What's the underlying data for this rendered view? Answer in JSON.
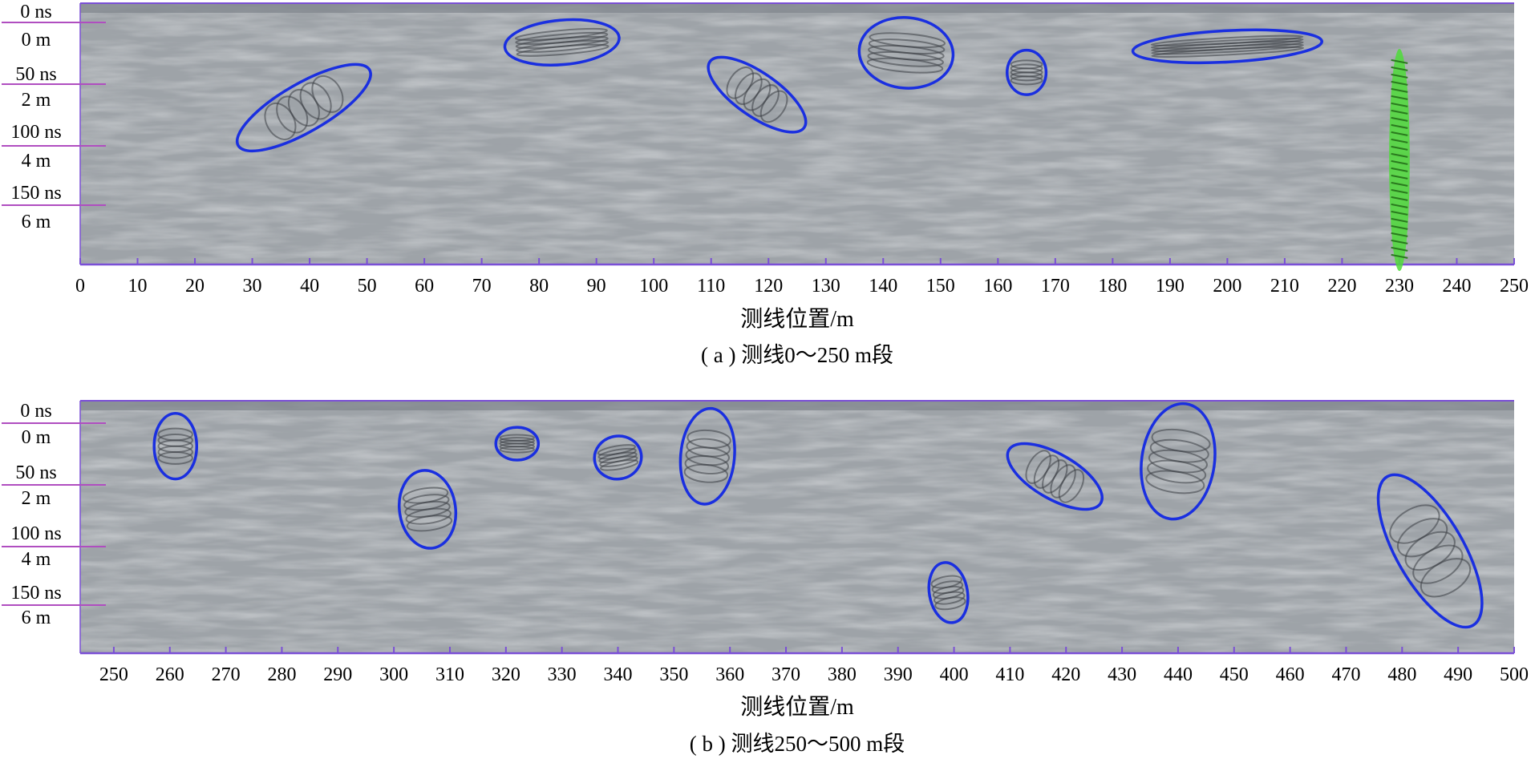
{
  "colors": {
    "radar_bg": "#9ea3a8",
    "axis": "#7a4fd6",
    "anomaly": "#1a2fe0",
    "highlight": "#4fdc3a",
    "left_scale": "#b04ec0"
  },
  "panels": [
    {
      "id": "a",
      "caption": "( a ) 测线0～250 m段",
      "x_axis_label": "测线位置/m",
      "x_ticks": [
        "0",
        "10",
        "20",
        "30",
        "40",
        "50",
        "60",
        "70",
        "80",
        "90",
        "100",
        "110",
        "120",
        "130",
        "140",
        "150",
        "160",
        "170",
        "180",
        "190",
        "200",
        "210",
        "220",
        "230",
        "240",
        "250"
      ],
      "x_range": [
        0,
        250
      ],
      "time_labels": [
        "0 ns",
        "50 ns",
        "100 ns",
        "150 ns"
      ],
      "depth_labels": [
        "0 m",
        "2 m",
        "4 m",
        "6 m"
      ],
      "ellipses": [
        {
          "x": 39,
          "t": 80,
          "rx": 4.2,
          "rt": 58,
          "angle": 60,
          "color": "anomaly"
        },
        {
          "x": 84,
          "t": 30,
          "rx": 10.0,
          "rt": 17,
          "angle": -5,
          "color": "anomaly"
        },
        {
          "x": 118,
          "t": 70,
          "rx": 3.8,
          "rt": 44,
          "angle": -55,
          "color": "anomaly"
        },
        {
          "x": 144,
          "t": 38,
          "rx": 8.2,
          "rt": 27,
          "angle": 5,
          "color": "anomaly"
        },
        {
          "x": 165,
          "t": 53,
          "rx": 3.4,
          "rt": 17,
          "angle": 0,
          "color": "anomaly"
        },
        {
          "x": 200,
          "t": 33,
          "rx": 16.5,
          "rt": 12,
          "angle": -3,
          "color": "anomaly"
        },
        {
          "x": 230,
          "t": 120,
          "rx": 1.8,
          "rt": 85,
          "angle": 0,
          "color": "highlight",
          "fill": true
        }
      ]
    },
    {
      "id": "b",
      "caption": "( b ) 测线250～500 m段",
      "x_axis_label": "测线位置/m",
      "x_ticks": [
        "250",
        "260",
        "270",
        "280",
        "290",
        "300",
        "310",
        "320",
        "330",
        "340",
        "350",
        "360",
        "370",
        "380",
        "390",
        "400",
        "410",
        "420",
        "430",
        "440",
        "450",
        "460",
        "470",
        "480",
        "490",
        "500"
      ],
      "x_range": [
        244,
        500
      ],
      "time_labels": [
        "0 ns",
        "50 ns",
        "100 ns",
        "150 ns"
      ],
      "depth_labels": [
        "0 m",
        "2 m",
        "4 m",
        "6 m"
      ],
      "ellipses": [
        {
          "x": 261,
          "t": 36,
          "rx": 3.8,
          "rt": 26,
          "angle": 0,
          "color": "anomaly"
        },
        {
          "x": 306,
          "t": 86,
          "rx": 5.0,
          "rt": 31,
          "angle": -8,
          "color": "anomaly"
        },
        {
          "x": 322,
          "t": 34,
          "rx": 3.8,
          "rt": 13,
          "angle": 0,
          "color": "anomaly"
        },
        {
          "x": 340,
          "t": 45,
          "rx": 4.2,
          "rt": 17,
          "angle": -10,
          "color": "anomaly"
        },
        {
          "x": 356,
          "t": 44,
          "rx": 4.8,
          "rt": 38,
          "angle": 5,
          "color": "anomaly"
        },
        {
          "x": 399,
          "t": 152,
          "rx": 3.4,
          "rt": 24,
          "angle": -10,
          "color": "anomaly"
        },
        {
          "x": 418,
          "t": 60,
          "rx": 4.0,
          "rt": 42,
          "angle": -60,
          "color": "anomaly"
        },
        {
          "x": 440,
          "t": 48,
          "rx": 6.5,
          "rt": 46,
          "angle": 8,
          "color": "anomaly"
        },
        {
          "x": 485,
          "t": 119,
          "rx": 6.0,
          "rt": 68,
          "angle": -30,
          "color": "anomaly"
        }
      ]
    }
  ]
}
